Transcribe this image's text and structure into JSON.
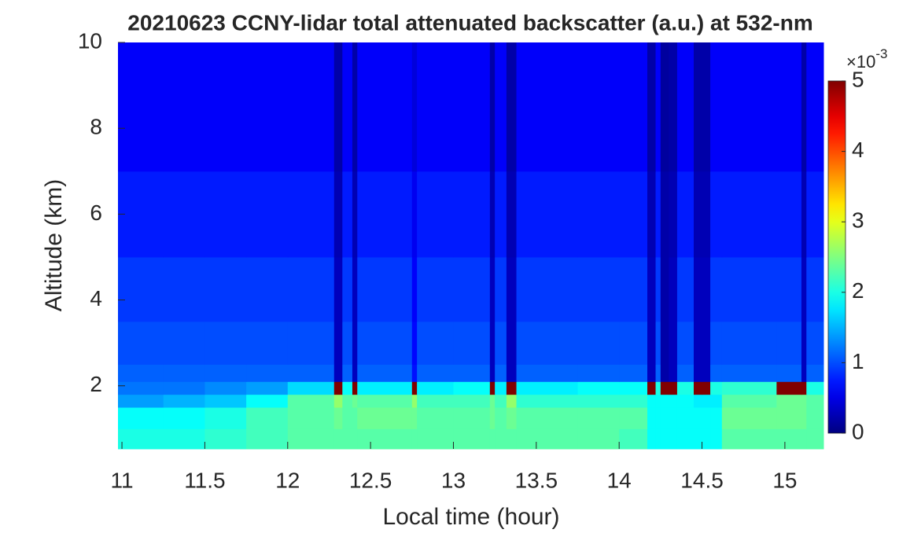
{
  "chart_data": {
    "type": "heatmap",
    "title": "20210623 CCNY-lidar total attenuated backscatter (a.u.) at 532-nm",
    "x_label": "Local time (hour)",
    "y_label": "Altitude (km)",
    "colormap": "jet",
    "colorbar_scale": "×10",
    "colorbar_scale_exponent": "-3",
    "x_edges": [
      10.976,
      11.25,
      11.5,
      11.75,
      12.0,
      12.28,
      12.33,
      12.39,
      12.42,
      12.75,
      12.78,
      13.0,
      13.22,
      13.25,
      13.32,
      13.38,
      13.75,
      14.0,
      14.17,
      14.22,
      14.25,
      14.3,
      14.35,
      14.45,
      14.5,
      14.55,
      14.62,
      14.95,
      15.1,
      15.13,
      15.233
    ],
    "y_edges": [
      0.53,
      1.0,
      1.5,
      1.8,
      2.1,
      2.5,
      3.5,
      5,
      7,
      10
    ],
    "values": [
      [
        2.0,
        2.0,
        2.1,
        2.2,
        2.3,
        2.3,
        2.3,
        2.3,
        2.3,
        2.3,
        2.3,
        2.3,
        2.3,
        2.3,
        2.3,
        2.3,
        2.3,
        2.2,
        1.9,
        1.9,
        1.9,
        1.9,
        1.9,
        1.9,
        1.9,
        1.9,
        2.3,
        2.3,
        2.3,
        2.3
      ],
      [
        1.9,
        1.9,
        2.0,
        2.2,
        2.3,
        2.4,
        2.3,
        2.3,
        2.4,
        2.4,
        2.3,
        2.3,
        2.4,
        2.3,
        2.4,
        2.3,
        2.3,
        2.3,
        1.9,
        1.9,
        1.9,
        1.9,
        1.9,
        1.9,
        1.9,
        1.9,
        2.4,
        2.4,
        2.4,
        2.3
      ],
      [
        1.4,
        1.5,
        1.6,
        1.9,
        2.3,
        2.6,
        2.3,
        2.4,
        2.3,
        2.6,
        2.2,
        2.2,
        2.4,
        2.2,
        2.6,
        2.1,
        2.1,
        2.1,
        1.9,
        1.9,
        1.9,
        1.9,
        1.9,
        1.8,
        1.8,
        1.8,
        2.3,
        2.4,
        2.4,
        2.3
      ],
      [
        1.2,
        1.2,
        1.3,
        1.4,
        1.7,
        5,
        1.9,
        5,
        1.8,
        5,
        1.8,
        1.9,
        5,
        1.8,
        5,
        1.8,
        1.9,
        1.9,
        5,
        2.0,
        5,
        5,
        2.0,
        5,
        5,
        2.0,
        2.1,
        5,
        5,
        2.0
      ],
      [
        1.1,
        1.1,
        1.1,
        1.1,
        1.1,
        0.3,
        1.1,
        0.3,
        1.1,
        0.7,
        1.1,
        1.1,
        0.3,
        1.1,
        0.3,
        1.1,
        1.1,
        1.1,
        0.3,
        1.1,
        0.2,
        0.3,
        1.1,
        0.3,
        0.3,
        1.1,
        1.1,
        1.1,
        0.3,
        1.1
      ],
      [
        1.0,
        1.0,
        1.0,
        1.0,
        1.0,
        0.3,
        1.0,
        0.3,
        1.0,
        0.65,
        1.0,
        1.0,
        0.3,
        1.0,
        0.3,
        1.0,
        1.0,
        1.0,
        0.3,
        1.0,
        0.2,
        0.3,
        1.0,
        0.3,
        0.3,
        1.0,
        1.0,
        1.0,
        0.3,
        1.0
      ],
      [
        0.9,
        0.9,
        0.9,
        0.9,
        0.9,
        0.3,
        0.9,
        0.3,
        0.9,
        0.6,
        0.9,
        0.9,
        0.3,
        0.9,
        0.3,
        0.9,
        0.9,
        0.9,
        0.3,
        0.9,
        0.2,
        0.3,
        0.9,
        0.3,
        0.3,
        0.9,
        0.9,
        0.9,
        0.3,
        0.9
      ],
      [
        0.75,
        0.75,
        0.75,
        0.75,
        0.75,
        0.25,
        0.75,
        0.25,
        0.75,
        0.55,
        0.75,
        0.75,
        0.25,
        0.75,
        0.25,
        0.75,
        0.75,
        0.75,
        0.25,
        0.75,
        0.2,
        0.25,
        0.75,
        0.25,
        0.25,
        0.75,
        0.75,
        0.75,
        0.25,
        0.75
      ],
      [
        0.6,
        0.6,
        0.6,
        0.6,
        0.6,
        0.2,
        0.6,
        0.2,
        0.6,
        0.45,
        0.6,
        0.6,
        0.2,
        0.6,
        0.2,
        0.6,
        0.6,
        0.6,
        0.2,
        0.6,
        0.15,
        0.2,
        0.6,
        0.2,
        0.2,
        0.6,
        0.6,
        0.6,
        0.2,
        0.6
      ]
    ],
    "xlim": [
      10.976,
      15.233
    ],
    "ylim": [
      0.53,
      10
    ],
    "xticks": [
      11,
      11.5,
      12,
      12.5,
      13,
      13.5,
      14,
      14.5,
      15
    ],
    "yticks": [
      2,
      4,
      6,
      8,
      10
    ],
    "clim": [
      0,
      5
    ],
    "cticks": [
      0,
      1,
      2,
      3,
      4,
      5
    ]
  }
}
